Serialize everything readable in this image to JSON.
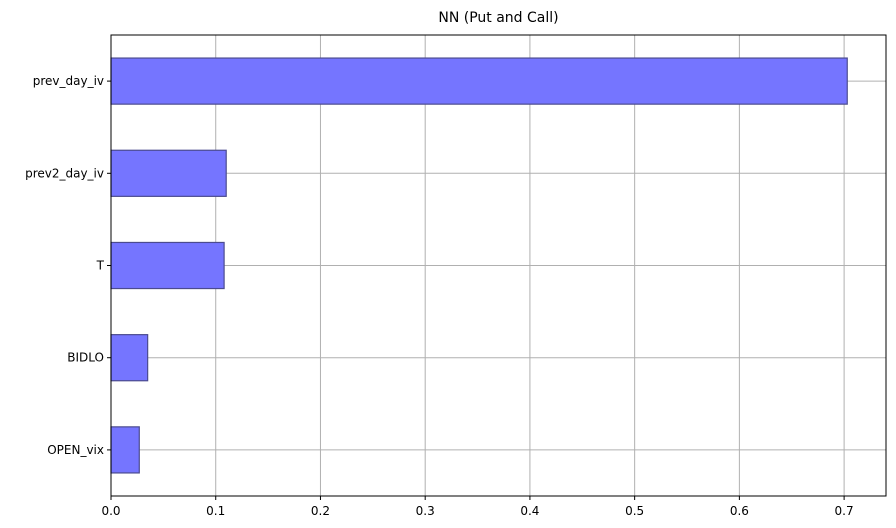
{
  "chart_data": {
    "type": "bar",
    "orientation": "horizontal",
    "title": "NN (Put and Call)",
    "xlabel": "",
    "ylabel": "",
    "categories": [
      "OPEN_vix",
      "BIDLO",
      "T",
      "prev2_day_iv",
      "prev_day_iv"
    ],
    "values": [
      0.027,
      0.035,
      0.108,
      0.11,
      0.703
    ],
    "xlim": [
      0.0,
      0.74
    ],
    "xticks": [
      0.0,
      0.1,
      0.2,
      0.3,
      0.4,
      0.5,
      0.6,
      0.7
    ],
    "xtick_labels": [
      "0.0",
      "0.1",
      "0.2",
      "0.3",
      "0.4",
      "0.5",
      "0.6",
      "0.7"
    ],
    "grid": true,
    "bar_color": "#7575ff",
    "bar_edge_color": "#4b4b8f",
    "grid_color": "#b0b0b0"
  }
}
